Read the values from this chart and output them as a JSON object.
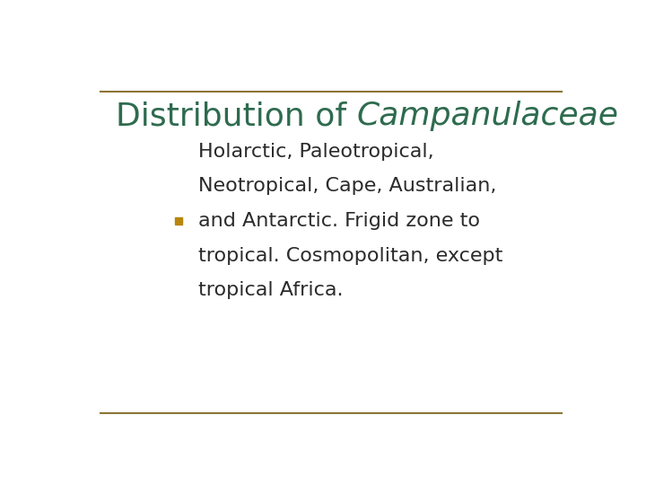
{
  "title_plain": "Distribution of ",
  "title_italic": "Campanulaceae",
  "title_color": "#2E6B4F",
  "background_color": "#FFFFFF",
  "border_color_top": "#8B7536",
  "border_color_bottom": "#8B7536",
  "bullet_color": "#B8860B",
  "bullet_text_lines": [
    "Holarctic, Paleotropical,",
    "Neotropical, Cape, Australian,",
    "and Antarctic. Frigid zone to",
    "tropical. Cosmopolitan, except",
    "tropical Africa."
  ],
  "body_text_color": "#2B2B2B",
  "title_fontsize": 26,
  "body_fontsize": 16,
  "bullet_square_size": 0.015
}
